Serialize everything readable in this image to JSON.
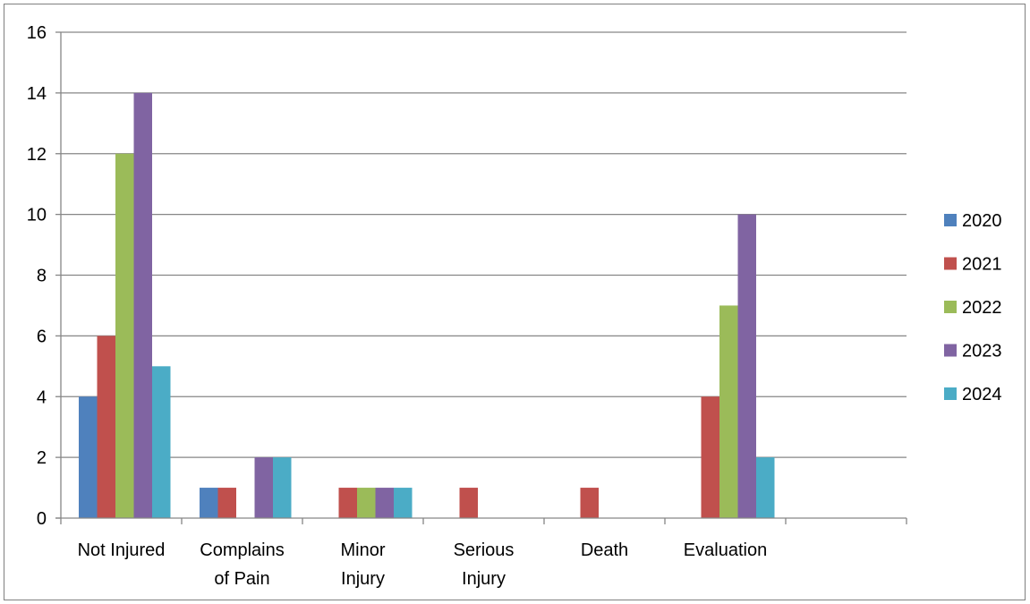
{
  "chart_data": {
    "type": "bar",
    "categories": [
      [
        "Not Injured"
      ],
      [
        "Complains",
        "of Pain"
      ],
      [
        "Minor",
        "Injury"
      ],
      [
        "Serious",
        "Injury"
      ],
      [
        "Death"
      ],
      [
        "Evaluation"
      ],
      [
        ""
      ]
    ],
    "series": [
      {
        "name": "2020",
        "color": "#4f81bd",
        "values": [
          4,
          1,
          0,
          0,
          0,
          0,
          0
        ]
      },
      {
        "name": "2021",
        "color": "#c0504d",
        "values": [
          6,
          1,
          1,
          1,
          1,
          4,
          0
        ]
      },
      {
        "name": "2022",
        "color": "#9bbb59",
        "values": [
          12,
          0,
          1,
          0,
          0,
          7,
          0
        ]
      },
      {
        "name": "2023",
        "color": "#8064a2",
        "values": [
          14,
          2,
          1,
          0,
          0,
          10,
          0
        ]
      },
      {
        "name": "2024",
        "color": "#4bacc6",
        "values": [
          5,
          2,
          1,
          0,
          0,
          2,
          0
        ]
      }
    ],
    "ylim": [
      0,
      16
    ],
    "yticks": [
      0,
      2,
      4,
      6,
      8,
      10,
      12,
      14,
      16
    ],
    "grid": true,
    "legend": "right"
  }
}
